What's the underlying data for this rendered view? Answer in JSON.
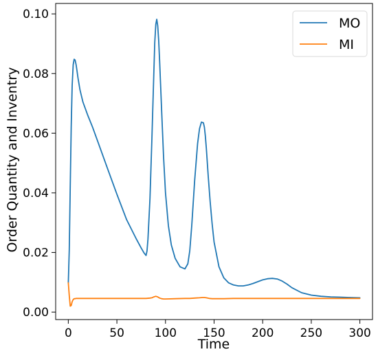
{
  "chart_data": {
    "type": "line",
    "title": "",
    "xlabel": "Time",
    "ylabel": "Order Quantity and Inventry",
    "xlim": [
      -13,
      313
    ],
    "ylim": [
      -0.0025,
      0.1035
    ],
    "xticks": [
      0,
      50,
      100,
      150,
      200,
      250,
      300
    ],
    "xtick_labels": [
      "0",
      "50",
      "100",
      "150",
      "200",
      "250",
      "300"
    ],
    "yticks": [
      0.0,
      0.02,
      0.04,
      0.06,
      0.08,
      0.1
    ],
    "ytick_labels": [
      "0.00",
      "0.02",
      "0.04",
      "0.06",
      "0.08",
      "0.10"
    ],
    "grid": false,
    "legend_position": "top-right",
    "series": [
      {
        "name": "MO",
        "color": "#1f77b4",
        "x": [
          0,
          1,
          2,
          3,
          4,
          5,
          6,
          7,
          8,
          9,
          10,
          12,
          15,
          20,
          25,
          30,
          40,
          50,
          60,
          70,
          75,
          78,
          80,
          81,
          82,
          84,
          86,
          88,
          89,
          90,
          91,
          92,
          93,
          94,
          96,
          98,
          100,
          103,
          106,
          110,
          115,
          120,
          123,
          125,
          127,
          130,
          133,
          135,
          137,
          139,
          140,
          141,
          142,
          144,
          146,
          148,
          150,
          155,
          160,
          165,
          170,
          175,
          180,
          185,
          190,
          195,
          200,
          205,
          210,
          215,
          220,
          225,
          230,
          240,
          250,
          260,
          270,
          280,
          290,
          300
        ],
        "y": [
          0.0098,
          0.021,
          0.042,
          0.062,
          0.076,
          0.083,
          0.0848,
          0.0845,
          0.083,
          0.0808,
          0.0785,
          0.0745,
          0.0705,
          0.066,
          0.062,
          0.0575,
          0.0485,
          0.0395,
          0.031,
          0.0245,
          0.0215,
          0.0198,
          0.019,
          0.0205,
          0.0245,
          0.038,
          0.058,
          0.08,
          0.0905,
          0.0965,
          0.0982,
          0.096,
          0.091,
          0.084,
          0.068,
          0.052,
          0.04,
          0.029,
          0.0225,
          0.018,
          0.0152,
          0.0145,
          0.0162,
          0.0205,
          0.029,
          0.044,
          0.0565,
          0.0615,
          0.0637,
          0.0635,
          0.062,
          0.059,
          0.055,
          0.0455,
          0.037,
          0.0295,
          0.0235,
          0.0152,
          0.0115,
          0.0098,
          0.0091,
          0.0088,
          0.0088,
          0.0091,
          0.0096,
          0.0102,
          0.0108,
          0.0112,
          0.0113,
          0.0111,
          0.0104,
          0.0094,
          0.0082,
          0.0065,
          0.0057,
          0.0053,
          0.0051,
          0.005,
          0.0049,
          0.0048
        ]
      },
      {
        "name": "MI",
        "color": "#ff7f0e",
        "x": [
          0,
          1,
          2,
          3,
          4,
          5,
          6,
          7,
          8,
          10,
          20,
          30,
          40,
          50,
          60,
          70,
          80,
          84,
          86,
          88,
          90,
          92,
          94,
          96,
          98,
          100,
          110,
          120,
          125,
          130,
          135,
          138,
          140,
          142,
          145,
          148,
          150,
          160,
          170,
          180,
          200,
          220,
          240,
          260,
          280,
          300
        ],
        "y": [
          0.0098,
          0.0055,
          0.002,
          0.0022,
          0.0035,
          0.0042,
          0.0045,
          0.0045,
          0.0046,
          0.0046,
          0.0046,
          0.0046,
          0.0046,
          0.0046,
          0.0046,
          0.0046,
          0.0046,
          0.0047,
          0.0048,
          0.0051,
          0.0053,
          0.0051,
          0.0047,
          0.0045,
          0.0044,
          0.0044,
          0.0045,
          0.0046,
          0.0046,
          0.0047,
          0.0048,
          0.0049,
          0.0049,
          0.0048,
          0.0046,
          0.0045,
          0.0045,
          0.0045,
          0.0046,
          0.0046,
          0.0046,
          0.0046,
          0.0046,
          0.0046,
          0.0046,
          0.0046
        ]
      }
    ]
  }
}
